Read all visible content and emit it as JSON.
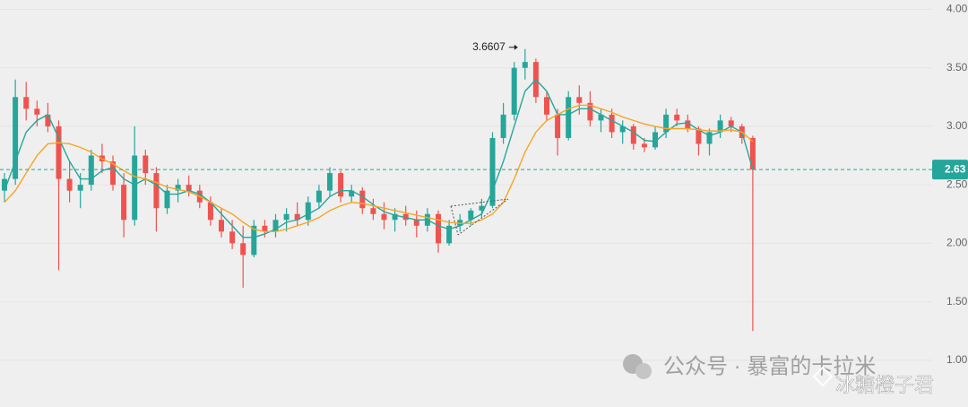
{
  "chart_data": {
    "type": "candlestick",
    "ylim": [
      0.6,
      4.08
    ],
    "yticks": [
      {
        "value": 1,
        "label": "1.00"
      },
      {
        "value": 1.5,
        "label": "1.50"
      },
      {
        "value": 2,
        "label": "2.00"
      },
      {
        "value": 2.5,
        "label": "2.50"
      },
      {
        "value": 3,
        "label": "3.00"
      },
      {
        "value": 3.5,
        "label": "3.50"
      },
      {
        "value": 4,
        "label": "4.00"
      }
    ],
    "grid": true,
    "up_color": "#26a69a",
    "down_color": "#ef5350",
    "ohlc": [
      [
        2.45,
        2.6,
        2.35,
        2.55
      ],
      [
        2.55,
        3.4,
        2.5,
        3.25
      ],
      [
        3.25,
        3.38,
        3.05,
        3.15
      ],
      [
        3.15,
        3.22,
        3.0,
        3.1
      ],
      [
        3.1,
        3.2,
        2.95,
        3.0
      ],
      [
        3.0,
        3.05,
        1.77,
        2.55
      ],
      [
        2.55,
        2.7,
        2.35,
        2.45
      ],
      [
        2.45,
        2.6,
        2.3,
        2.5
      ],
      [
        2.5,
        2.8,
        2.45,
        2.75
      ],
      [
        2.75,
        2.85,
        2.6,
        2.7
      ],
      [
        2.7,
        2.75,
        2.45,
        2.5
      ],
      [
        2.5,
        2.6,
        2.05,
        2.2
      ],
      [
        2.2,
        3.0,
        2.15,
        2.75
      ],
      [
        2.75,
        2.8,
        2.5,
        2.6
      ],
      [
        2.6,
        2.65,
        2.1,
        2.3
      ],
      [
        2.3,
        2.5,
        2.25,
        2.45
      ],
      [
        2.45,
        2.55,
        2.35,
        2.5
      ],
      [
        2.5,
        2.58,
        2.4,
        2.45
      ],
      [
        2.45,
        2.5,
        2.3,
        2.35
      ],
      [
        2.35,
        2.4,
        2.15,
        2.2
      ],
      [
        2.2,
        2.3,
        2.05,
        2.1
      ],
      [
        2.1,
        2.2,
        1.95,
        2.0
      ],
      [
        2.0,
        2.15,
        1.62,
        1.9
      ],
      [
        1.9,
        2.2,
        1.88,
        2.15
      ],
      [
        2.15,
        2.2,
        2.05,
        2.1
      ],
      [
        2.1,
        2.25,
        2.05,
        2.2
      ],
      [
        2.2,
        2.3,
        2.1,
        2.25
      ],
      [
        2.25,
        2.35,
        2.15,
        2.2
      ],
      [
        2.2,
        2.4,
        2.15,
        2.35
      ],
      [
        2.35,
        2.5,
        2.3,
        2.45
      ],
      [
        2.45,
        2.65,
        2.4,
        2.6
      ],
      [
        2.6,
        2.62,
        2.35,
        2.4
      ],
      [
        2.4,
        2.5,
        2.35,
        2.45
      ],
      [
        2.45,
        2.48,
        2.25,
        2.3
      ],
      [
        2.3,
        2.38,
        2.2,
        2.25
      ],
      [
        2.25,
        2.35,
        2.12,
        2.2
      ],
      [
        2.2,
        2.3,
        2.1,
        2.25
      ],
      [
        2.25,
        2.32,
        2.15,
        2.2
      ],
      [
        2.2,
        2.28,
        2.05,
        2.15
      ],
      [
        2.15,
        2.3,
        2.1,
        2.25
      ],
      [
        2.25,
        2.28,
        1.92,
        2.0
      ],
      [
        2.0,
        2.2,
        1.98,
        2.15
      ],
      [
        2.15,
        2.25,
        2.1,
        2.2
      ],
      [
        2.2,
        2.3,
        2.15,
        2.28
      ],
      [
        2.28,
        2.38,
        2.22,
        2.32
      ],
      [
        2.32,
        2.95,
        2.3,
        2.9
      ],
      [
        2.9,
        3.2,
        2.85,
        3.1
      ],
      [
        3.1,
        3.55,
        3.05,
        3.5
      ],
      [
        3.5,
        3.6607,
        3.4,
        3.55
      ],
      [
        3.55,
        3.58,
        3.2,
        3.25
      ],
      [
        3.25,
        3.3,
        3.05,
        3.1
      ],
      [
        3.1,
        3.15,
        2.75,
        2.9
      ],
      [
        2.9,
        3.3,
        2.88,
        3.25
      ],
      [
        3.25,
        3.35,
        3.1,
        3.2
      ],
      [
        3.2,
        3.3,
        3.0,
        3.05
      ],
      [
        3.05,
        3.15,
        2.95,
        3.1
      ],
      [
        3.1,
        3.15,
        2.9,
        2.95
      ],
      [
        2.95,
        3.05,
        2.85,
        3.0
      ],
      [
        3.0,
        3.02,
        2.8,
        2.85
      ],
      [
        2.85,
        2.9,
        2.78,
        2.82
      ],
      [
        2.82,
        3.0,
        2.8,
        2.95
      ],
      [
        2.95,
        3.15,
        2.9,
        3.1
      ],
      [
        3.1,
        3.15,
        3.0,
        3.05
      ],
      [
        3.05,
        3.1,
        2.95,
        2.98
      ],
      [
        2.98,
        3.0,
        2.75,
        2.85
      ],
      [
        2.85,
        2.98,
        2.75,
        2.95
      ],
      [
        2.95,
        3.1,
        2.9,
        3.05
      ],
      [
        3.05,
        3.08,
        2.95,
        3.0
      ],
      [
        3.0,
        3.02,
        2.85,
        2.9
      ],
      [
        2.9,
        2.92,
        1.25,
        2.63
      ]
    ],
    "series": [
      {
        "color": "#26a69a",
        "values": [
          2.45,
          2.7,
          2.95,
          3.05,
          3.1,
          2.9,
          2.7,
          2.55,
          2.55,
          2.62,
          2.65,
          2.55,
          2.5,
          2.55,
          2.5,
          2.42,
          2.42,
          2.45,
          2.42,
          2.35,
          2.25,
          2.15,
          2.05,
          2.05,
          2.08,
          2.12,
          2.18,
          2.2,
          2.25,
          2.3,
          2.4,
          2.45,
          2.45,
          2.4,
          2.33,
          2.27,
          2.24,
          2.22,
          2.2,
          2.2,
          2.15,
          2.12,
          2.15,
          2.2,
          2.25,
          2.45,
          2.7,
          3.0,
          3.3,
          3.4,
          3.3,
          3.1,
          3.1,
          3.15,
          3.15,
          3.1,
          3.05,
          3.0,
          2.95,
          2.88,
          2.87,
          2.95,
          3.02,
          3.03,
          2.97,
          2.92,
          2.95,
          3.0,
          2.95,
          2.63
        ]
      },
      {
        "color": "#f5a623",
        "values": [
          2.35,
          2.45,
          2.6,
          2.75,
          2.85,
          2.86,
          2.85,
          2.82,
          2.78,
          2.72,
          2.68,
          2.62,
          2.57,
          2.55,
          2.52,
          2.48,
          2.46,
          2.44,
          2.4,
          2.35,
          2.3,
          2.25,
          2.18,
          2.12,
          2.1,
          2.1,
          2.12,
          2.15,
          2.18,
          2.22,
          2.28,
          2.32,
          2.35,
          2.34,
          2.32,
          2.3,
          2.28,
          2.26,
          2.24,
          2.22,
          2.2,
          2.18,
          2.17,
          2.17,
          2.2,
          2.25,
          2.35,
          2.55,
          2.78,
          2.95,
          3.05,
          3.1,
          3.15,
          3.18,
          3.18,
          3.15,
          3.12,
          3.08,
          3.05,
          3.02,
          3.0,
          2.98,
          2.98,
          2.98,
          2.97,
          2.96,
          2.96,
          2.97,
          2.95,
          2.87
        ]
      }
    ],
    "last_price": 2.63,
    "annotations": [
      {
        "text": "3.6607",
        "value": 3.6607
      }
    ],
    "watermark": {
      "account": "公众号 · 暴富的卡拉米",
      "author": "冰糖橙子君"
    }
  }
}
